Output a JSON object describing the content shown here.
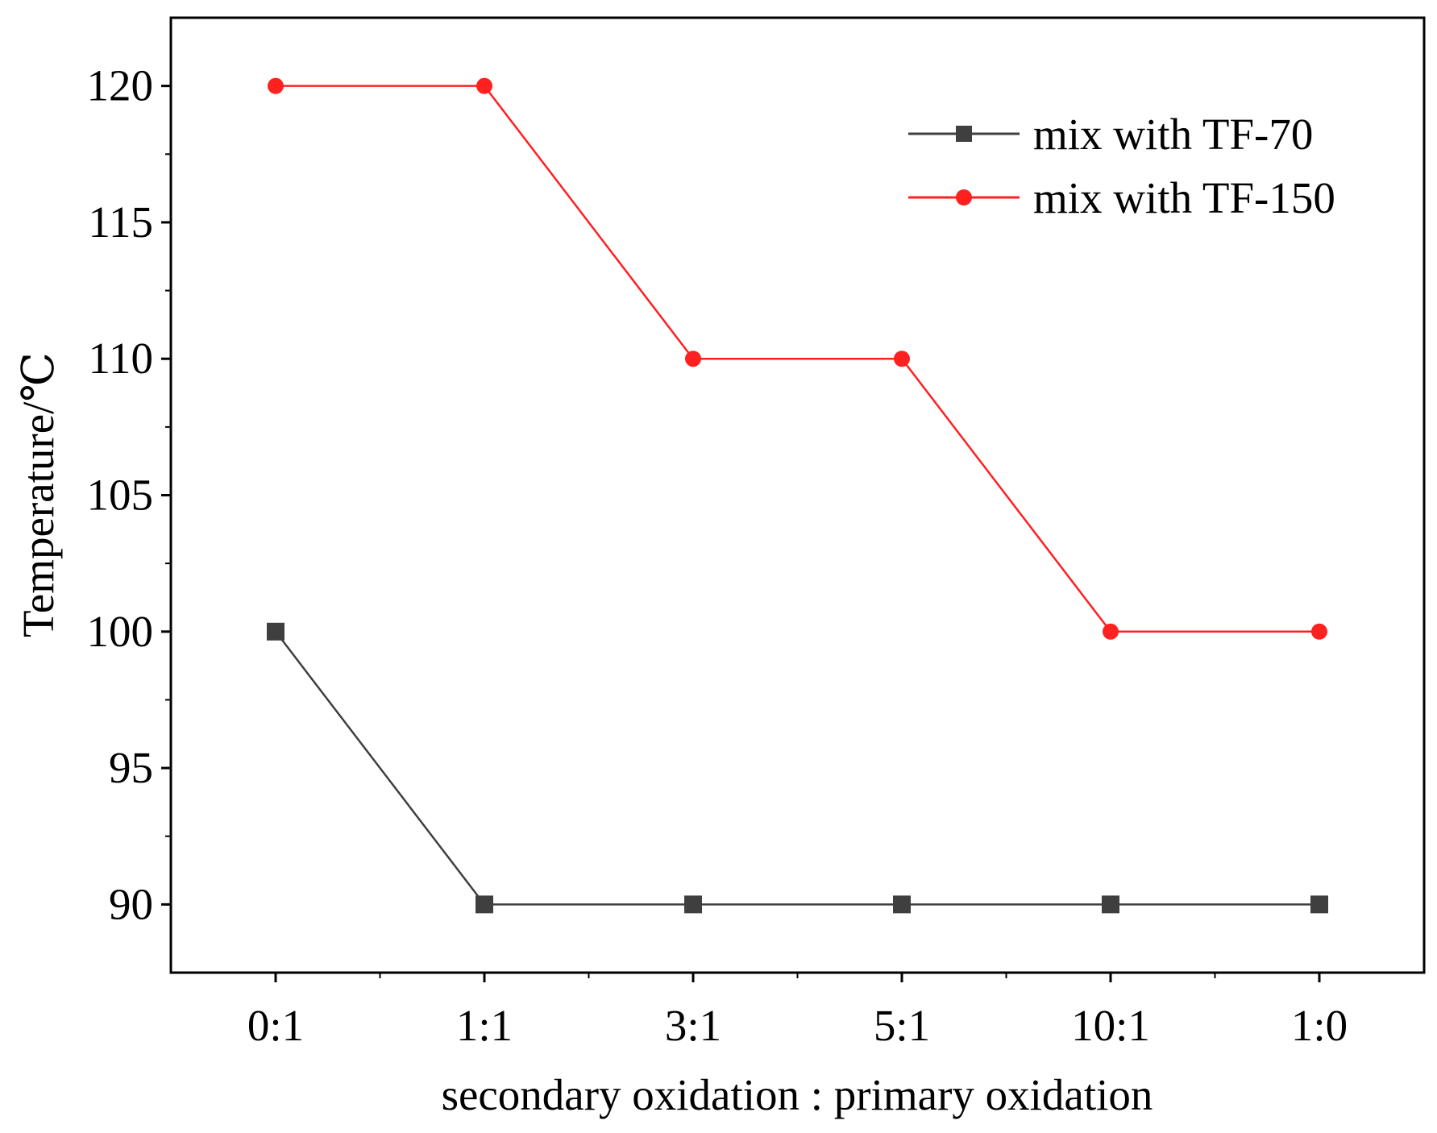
{
  "chart_data": {
    "type": "line",
    "title": "",
    "xlabel": "secondary oxidation : primary oxidation",
    "ylabel": "Temperature/℃",
    "categories": [
      "0:1",
      "1:1",
      "3:1",
      "5:1",
      "10:1",
      "1:0"
    ],
    "ylim": [
      87.5,
      122.5
    ],
    "yticks": [
      90,
      95,
      100,
      105,
      110,
      115,
      120
    ],
    "grid": false,
    "legend_position": "top-right",
    "series": [
      {
        "name": "mix with TF-70",
        "values": [
          100,
          90,
          90,
          90,
          90,
          90
        ],
        "color": "#3f3f3f",
        "marker": "square"
      },
      {
        "name": "mix with TF-150",
        "values": [
          120,
          120,
          110,
          110,
          100,
          100
        ],
        "color": "#ff2020",
        "marker": "circle"
      }
    ]
  }
}
